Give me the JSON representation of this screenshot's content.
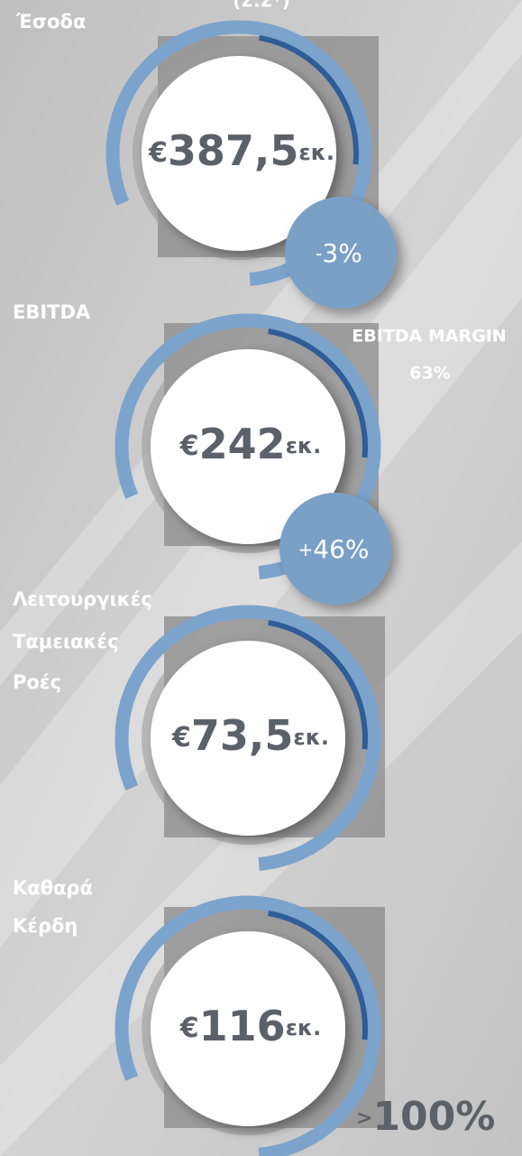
{
  "header": {
    "note": "(Σ.Σ*)"
  },
  "items": [
    {
      "label": [
        "Έσοδα"
      ],
      "currency": "€",
      "amount": "387,5",
      "unit": "εκ.",
      "change_prefix": "-",
      "change": "3%"
    },
    {
      "label": [
        "EBITDA"
      ],
      "currency": "€",
      "amount": "242",
      "unit": "εκ.",
      "change_prefix": "+",
      "change": "46%",
      "side_title": "EBITDA MARGIN",
      "side_value": "63%"
    },
    {
      "label": [
        "Λειτουργικές",
        "Ταμειακές",
        "Ροές"
      ],
      "currency": "€",
      "amount": "73,5",
      "unit": "εκ."
    },
    {
      "label": [
        "Καθαρά",
        "Κέρδη"
      ],
      "currency": "€",
      "amount": "116",
      "unit": "εκ.",
      "change_prefix": ">",
      "change": "100%"
    }
  ]
}
